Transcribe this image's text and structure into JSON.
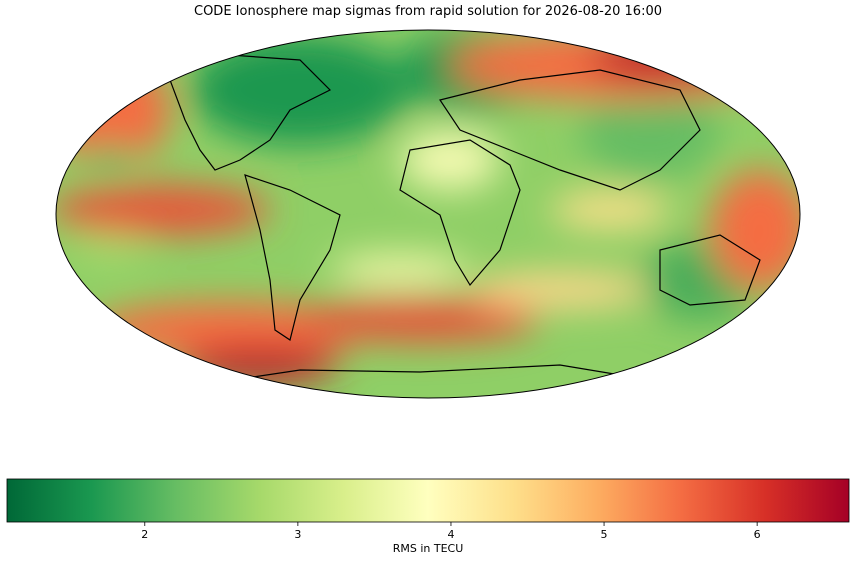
{
  "chart_data": {
    "type": "map",
    "title": "CODE Ionosphere map sigmas from rapid solution for 2026-08-20 16:00",
    "colorbar": {
      "label": "RMS in TECU",
      "xlim": [
        1.1,
        6.6
      ],
      "xticks": [
        2,
        3,
        4,
        5,
        6
      ],
      "colormap": [
        "#006837",
        "#1a9850",
        "#66bd63",
        "#a6d96a",
        "#d9ef8b",
        "#ffffbf",
        "#fee08b",
        "#fdae61",
        "#f46d43",
        "#d73027",
        "#a50026"
      ]
    }
  }
}
